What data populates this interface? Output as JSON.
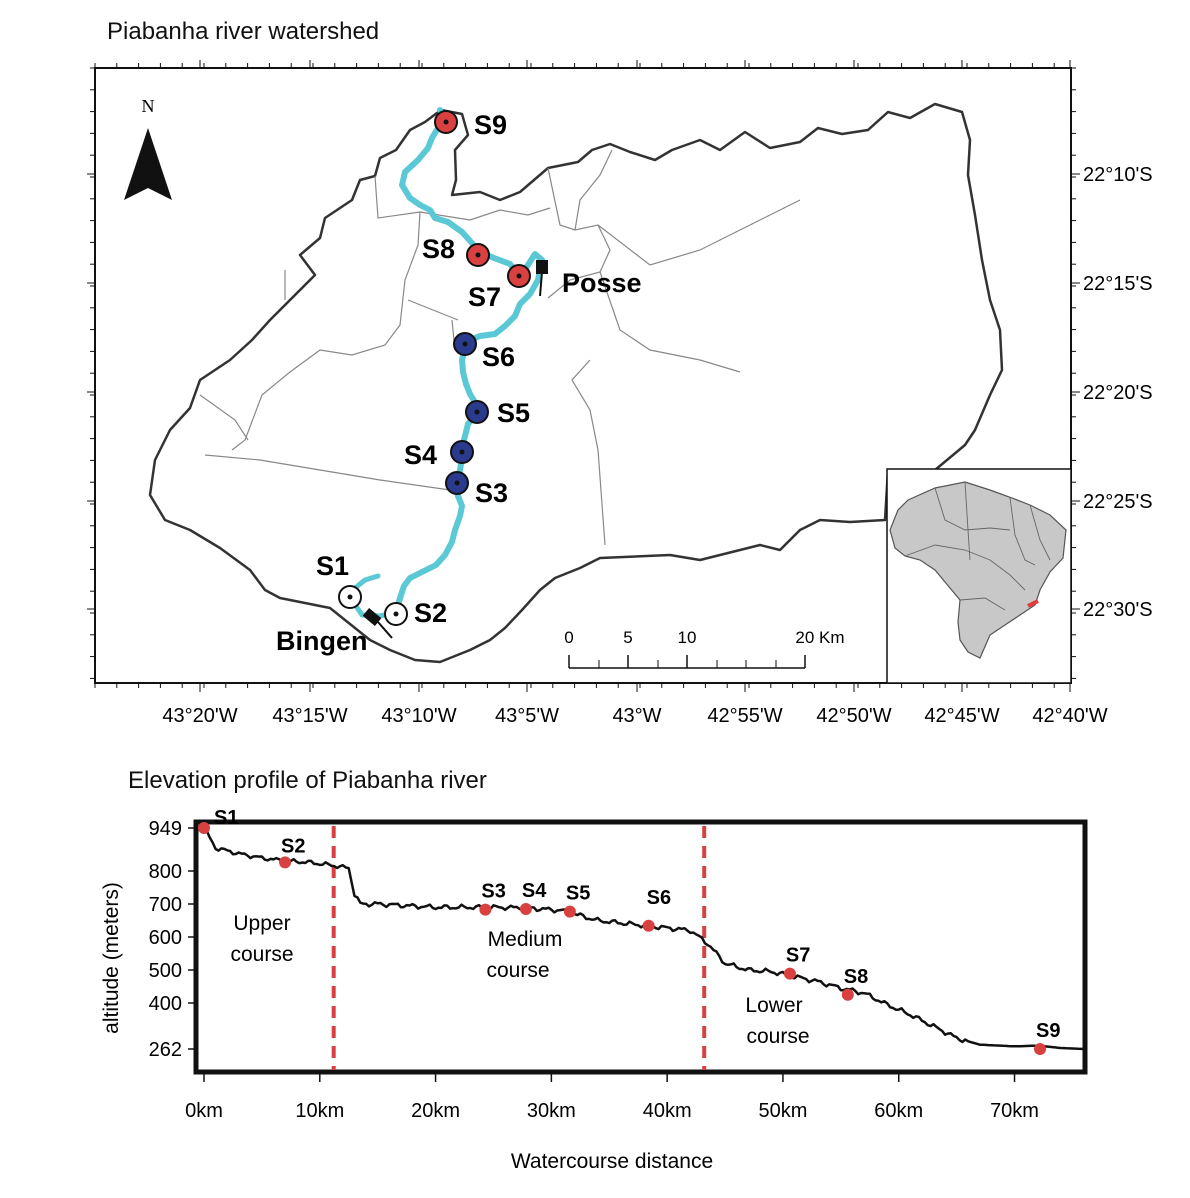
{
  "map": {
    "title": "Piabanha river watershed",
    "north_label": "N",
    "lon_ticks": [
      "43°20'W",
      "43°15'W",
      "43°10'W",
      "43°5'W",
      "43°W",
      "42°55'W",
      "42°50'W",
      "42°45'W",
      "42°40'W"
    ],
    "lat_ticks": [
      "22°10'S",
      "22°15'S",
      "22°20'S",
      "22°25'S",
      "22°30'S"
    ],
    "scalebar": {
      "labels": [
        "0",
        "5",
        "10",
        "20 Km"
      ]
    },
    "places": {
      "posse": "Posse",
      "bingen": "Bingen"
    },
    "colors": {
      "river": "#5bc8d6",
      "upper": "#ffffff",
      "medium": "#2a3a8c",
      "lower": "#d94040",
      "inset_highlight": "#e03a3a"
    },
    "stations": [
      {
        "id": "S1",
        "course": "upper"
      },
      {
        "id": "S2",
        "course": "upper"
      },
      {
        "id": "S3",
        "course": "medium"
      },
      {
        "id": "S4",
        "course": "medium"
      },
      {
        "id": "S5",
        "course": "medium"
      },
      {
        "id": "S6",
        "course": "medium"
      },
      {
        "id": "S7",
        "course": "lower"
      },
      {
        "id": "S8",
        "course": "lower"
      },
      {
        "id": "S9",
        "course": "lower"
      }
    ]
  },
  "profile": {
    "title": "Elevation profile of Piabanha river",
    "ylabel": "altitude (meters)",
    "xlabel": "Watercourse distance",
    "y_ticks": [
      "949",
      "800",
      "700",
      "600",
      "500",
      "400",
      "262"
    ],
    "x_ticks": [
      "0km",
      "10km",
      "20km",
      "30km",
      "40km",
      "50km",
      "60km",
      "70km"
    ],
    "zones": {
      "upper": [
        "Upper",
        "course"
      ],
      "medium": [
        "Medium",
        "course"
      ],
      "lower": [
        "Lower",
        "course"
      ]
    }
  },
  "chart_data": {
    "type": "line",
    "title": "Elevation profile of Piabanha river",
    "xlabel": "Watercourse distance",
    "ylabel": "altitude (meters)",
    "xlim": [
      0,
      76
    ],
    "ylim": [
      230,
      960
    ],
    "series": [
      {
        "x": [
          0,
          1,
          3,
          5,
          7,
          9,
          11,
          12.5,
          13,
          13.5,
          15,
          20,
          25,
          28,
          31,
          34,
          38,
          42,
          43.5,
          45,
          47,
          49,
          51,
          53,
          55,
          57,
          59,
          61,
          63,
          65,
          67,
          70,
          72,
          74,
          76
        ],
        "y": [
          949,
          880,
          860,
          845,
          835,
          830,
          820,
          810,
          730,
          700,
          700,
          690,
          690,
          688,
          680,
          650,
          635,
          620,
          580,
          520,
          500,
          495,
          480,
          465,
          445,
          430,
          395,
          365,
          330,
          295,
          275,
          270,
          272,
          265,
          262
        ]
      }
    ],
    "stations": [
      {
        "label": "S1",
        "x": 0,
        "y": 949
      },
      {
        "label": "S2",
        "x": 7,
        "y": 830
      },
      {
        "label": "S3",
        "x": 24.3,
        "y": 683
      },
      {
        "label": "S4",
        "x": 27.8,
        "y": 685
      },
      {
        "label": "S5",
        "x": 31.6,
        "y": 677
      },
      {
        "label": "S6",
        "x": 38.4,
        "y": 634
      },
      {
        "label": "S7",
        "x": 50.6,
        "y": 489
      },
      {
        "label": "S8",
        "x": 55.6,
        "y": 425
      },
      {
        "label": "S9",
        "x": 72.2,
        "y": 262
      }
    ],
    "boundaries": [
      11.2,
      43.2
    ]
  }
}
